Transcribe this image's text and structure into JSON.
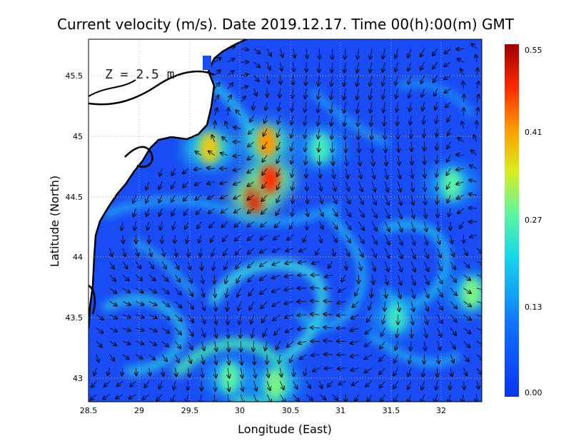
{
  "chart_data": {
    "type": "heatmap",
    "title": "Current velocity (m/s). Date 2019.12.17. Time 00(h):00(m) GMT",
    "depth_label": "Z = 2.5 m",
    "xlabel": "Longitude (East)",
    "ylabel": "Latitude (North)",
    "xlim": [
      28.5,
      32.4
    ],
    "ylim": [
      42.8,
      45.8
    ],
    "x_ticks": [
      "28.5",
      "29",
      "29.5",
      "30",
      "30.5",
      "31",
      "31.5",
      "32"
    ],
    "y_ticks": [
      "43",
      "43.5",
      "44",
      "44.5",
      "45",
      "45.5"
    ],
    "grid": true,
    "colorbar": {
      "min": 0.0,
      "max": 0.55,
      "tick_labels": [
        "0.55",
        "0.41",
        "0.27",
        "0.13",
        "0.00"
      ],
      "tick_values": [
        0.55,
        0.41,
        0.27,
        0.13,
        0.0
      ]
    },
    "speed_hotspots": [
      {
        "lon": 30.15,
        "lat": 44.5,
        "speed": 0.5
      },
      {
        "lon": 30.3,
        "lat": 44.65,
        "speed": 0.48
      },
      {
        "lon": 30.27,
        "lat": 44.95,
        "speed": 0.42
      },
      {
        "lon": 29.7,
        "lat": 44.9,
        "speed": 0.38
      },
      {
        "lon": 30.35,
        "lat": 42.95,
        "speed": 0.3
      },
      {
        "lon": 29.9,
        "lat": 43.0,
        "speed": 0.28
      },
      {
        "lon": 32.3,
        "lat": 43.7,
        "speed": 0.3
      },
      {
        "lon": 32.1,
        "lat": 44.6,
        "speed": 0.28
      },
      {
        "lon": 30.8,
        "lat": 44.9,
        "speed": 0.26
      },
      {
        "lon": 31.55,
        "lat": 43.5,
        "speed": 0.25
      }
    ]
  }
}
